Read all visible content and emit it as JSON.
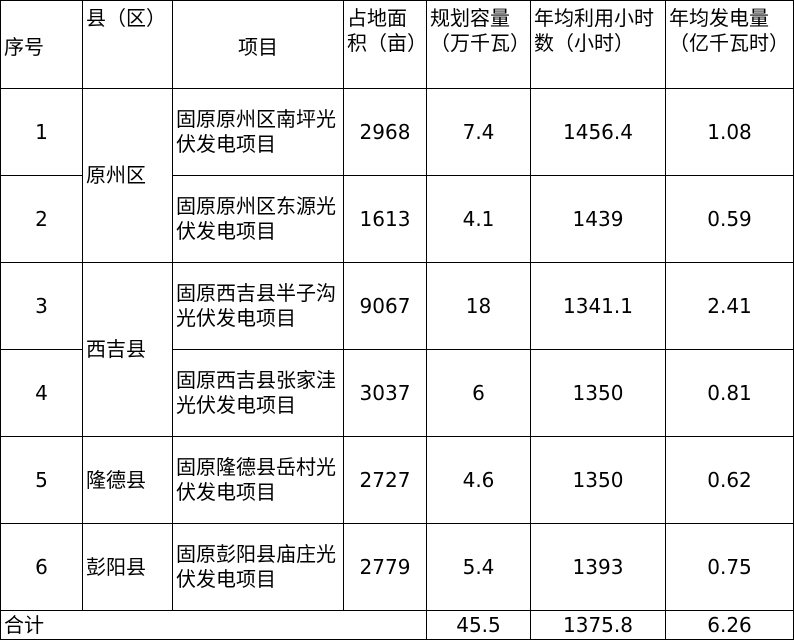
{
  "headers": [
    "序号",
    "县（区）",
    "项目",
    "占地面积（亩）",
    "规划容量（万千瓦）",
    "年均利用小时数（小时）",
    "年均发电量（亿千瓦时）"
  ],
  "rows": [
    {
      "no": "1",
      "county": "原州区",
      "project": "固原原州区南坪光伏发电项目",
      "area": "2968",
      "capacity": "7.4",
      "hours": "1456.4",
      "energy": "1.08"
    },
    {
      "no": "2",
      "county": "原州区",
      "project": "固原原州区东源光伏发电项目",
      "area": "1613",
      "capacity": "4.1",
      "hours": "1439",
      "energy": "0.59"
    },
    {
      "no": "3",
      "county": "西吉县",
      "project": "固原西吉县半子沟光伏发电项目",
      "area": "9067",
      "capacity": "18",
      "hours": "1341.1",
      "energy": "2.41"
    },
    {
      "no": "4",
      "county": "西吉县",
      "project": "固原西吉县张家洼光伏发电项目",
      "area": "3037",
      "capacity": "6",
      "hours": "1350",
      "energy": "0.81"
    },
    {
      "no": "5",
      "county": "隆德县",
      "project": "固原隆德县岳村光伏发电项目",
      "area": "2727",
      "capacity": "4.6",
      "hours": "1350",
      "energy": "0.62"
    },
    {
      "no": "6",
      "county": "彭阳县",
      "project": "固原彭阳县庙庄光伏发电项目",
      "area": "2779",
      "capacity": "5.4",
      "hours": "1393",
      "energy": "0.75"
    }
  ],
  "total": {
    "label": "合计",
    "capacity": "45.5",
    "hours": "1375.8",
    "energy": "6.26"
  }
}
